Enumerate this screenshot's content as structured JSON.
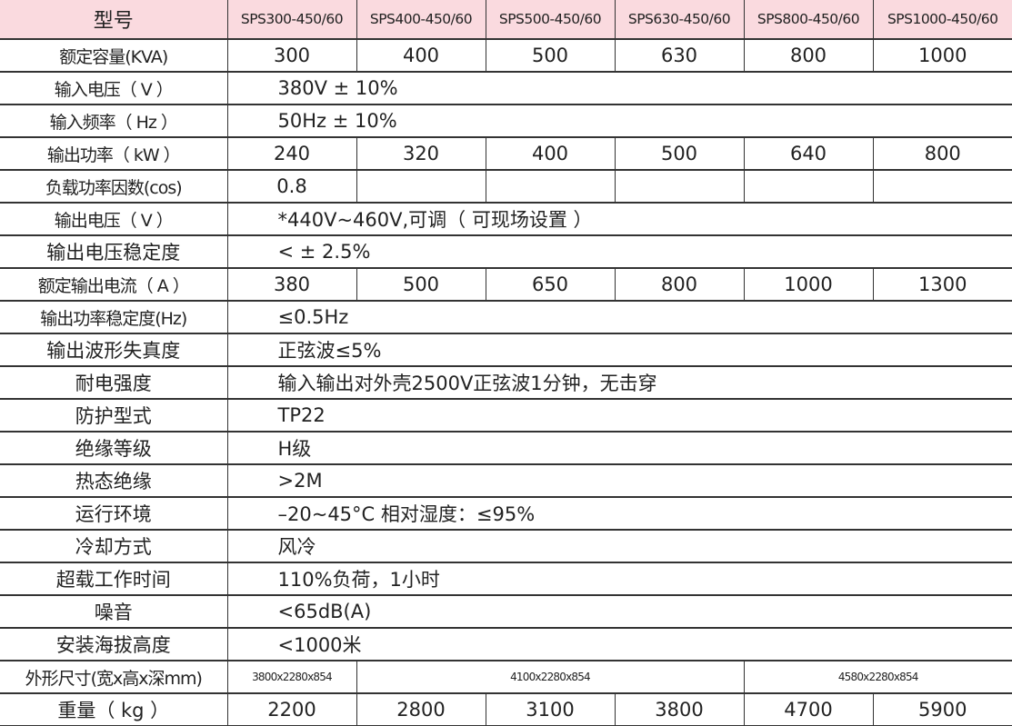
{
  "header": {
    "label": "型号",
    "models": [
      "SPS300-450/60",
      "SPS400-450/60",
      "SPS500-450/60",
      "SPS630-450/60",
      "SPS800-450/60",
      "SPS1000-450/60"
    ]
  },
  "colors": {
    "header_bg": "#fadadf",
    "border": "#333333"
  },
  "rows": [
    {
      "label": "额定容量(KVA)",
      "values": [
        "300",
        "400",
        "500",
        "630",
        "800",
        "1000"
      ]
    },
    {
      "label": "输入电压（ V ）",
      "value": "380V ± 10%"
    },
    {
      "label": "输入频率（ Hz ）",
      "value": "50Hz ± 10%"
    },
    {
      "label": "输出功率（ kW ）",
      "values": [
        "240",
        "320",
        "400",
        "500",
        "640",
        "800"
      ]
    },
    {
      "label": "负载功率因数(cos)",
      "values": [
        "0.8",
        "",
        "",
        "",
        "",
        ""
      ]
    },
    {
      "label": "输出电压（ V ）",
      "value": "*440V~460V,可调（ 可现场设置 ）"
    },
    {
      "label": "输出电压稳定度",
      "value": "< ± 2.5%"
    },
    {
      "label": "额定输出电流（ A ）",
      "values": [
        "380",
        "500",
        "650",
        "800",
        "1000",
        "1300"
      ]
    },
    {
      "label": "输出功率稳定度(Hz)",
      "value": "≤0.5Hz"
    },
    {
      "label": "输出波形失真度",
      "value": "正弦波≤5%"
    },
    {
      "label": "耐电强度",
      "value": "输入输出对外壳2500V正弦波1分钟，无击穿"
    },
    {
      "label": "防护型式",
      "value": "TP22"
    },
    {
      "label": "绝缘等级",
      "value": "H级"
    },
    {
      "label": "热态绝缘",
      "value": ">2M"
    },
    {
      "label": "运行环境",
      "value": "–20~45°C    相对湿度：≤95%"
    },
    {
      "label": "冷却方式",
      "value": "风冷"
    },
    {
      "label": "超载工作时间",
      "value": "110%负荷，1小时"
    },
    {
      "label": "噪音",
      "value": "<65dB(A)"
    },
    {
      "label": "安装海拔高度",
      "value": "<1000米"
    }
  ],
  "dimensions": {
    "label": "外形尺寸(宽x高x深mm)",
    "values": [
      "3800x2280x854",
      "4100x2280x854",
      "4580x2280x854"
    ]
  },
  "weight": {
    "label": "重量（ kg ）",
    "values": [
      "2200",
      "2800",
      "3100",
      "3800",
      "4700",
      "5900"
    ]
  }
}
